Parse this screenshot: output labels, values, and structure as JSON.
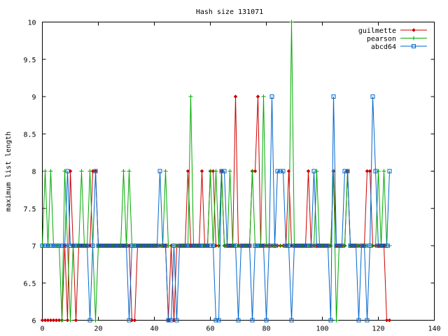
{
  "chart_data": {
    "type": "line",
    "title": "Hash size 131071",
    "xlabel": "",
    "ylabel": "maximum list length",
    "xlim": [
      0,
      140
    ],
    "ylim": [
      6,
      10
    ],
    "xticks": [
      0,
      20,
      40,
      60,
      80,
      100,
      120,
      140
    ],
    "yticks": [
      6,
      6.5,
      7,
      7.5,
      8,
      8.5,
      9,
      9.5,
      10
    ],
    "ytick_labels": [
      "6",
      "6.5",
      "7",
      "7.5",
      "8",
      "8.5",
      "9",
      "9.5",
      "10"
    ],
    "grid": false,
    "legend_position": "top-right",
    "series": [
      {
        "name": "guilmette",
        "color": "#cc0000",
        "marker": "diamond",
        "values": [
          6,
          6,
          6,
          6,
          6,
          6,
          6,
          6,
          7,
          6,
          8,
          7,
          6,
          7,
          7,
          7,
          7,
          7,
          8,
          8,
          7,
          7,
          7,
          7,
          7,
          7,
          7,
          7,
          7,
          7,
          7,
          7,
          6,
          6,
          7,
          7,
          7,
          7,
          7,
          7,
          7,
          7,
          7,
          7,
          7,
          6,
          7,
          6,
          7,
          7,
          7,
          7,
          8,
          7,
          7,
          7,
          7,
          8,
          7,
          7,
          8,
          8,
          7,
          7,
          8,
          7,
          7,
          7,
          7,
          9,
          7,
          7,
          7,
          7,
          7,
          8,
          8,
          9,
          7,
          7,
          7,
          7,
          7,
          7,
          7,
          7,
          7,
          7,
          8,
          7,
          7,
          7,
          7,
          7,
          7,
          8,
          7,
          7,
          7,
          7,
          7,
          7,
          7,
          7,
          8,
          7,
          7,
          7,
          7,
          8,
          7,
          7,
          7,
          7,
          7,
          7,
          8,
          8,
          7,
          7,
          7,
          7,
          7,
          6,
          6
        ]
      },
      {
        "name": "pearson",
        "color": "#00aa00",
        "marker": "plus",
        "values": [
          7,
          8,
          7,
          8,
          7,
          7,
          7,
          6,
          8,
          7,
          6,
          7,
          7,
          7,
          8,
          7,
          7,
          8,
          7,
          6,
          7,
          7,
          7,
          7,
          7,
          7,
          7,
          7,
          7,
          8,
          7,
          8,
          7,
          7,
          7,
          7,
          7,
          7,
          7,
          7,
          7,
          7,
          7,
          7,
          8,
          7,
          7,
          7,
          7,
          7,
          7,
          7,
          7,
          9,
          7,
          7,
          7,
          7,
          7,
          7,
          8,
          7,
          8,
          7,
          8,
          7,
          7,
          8,
          7,
          7,
          7,
          7,
          7,
          7,
          7,
          8,
          7,
          7,
          7,
          9,
          7,
          7,
          7,
          7,
          7,
          7,
          7,
          7,
          7,
          10,
          7,
          7,
          7,
          7,
          7,
          7,
          7,
          7,
          8,
          7,
          7,
          7,
          7,
          7,
          8,
          6,
          7,
          7,
          7,
          8,
          7,
          7,
          7,
          7,
          7,
          7,
          7,
          7,
          7,
          7,
          8,
          7,
          8,
          7,
          7
        ]
      },
      {
        "name": "abcd64",
        "color": "#0066cc",
        "marker": "square",
        "values": [
          7,
          7,
          7,
          7,
          7,
          7,
          7,
          7,
          7,
          8,
          7,
          7,
          7,
          7,
          7,
          7,
          7,
          6,
          7,
          8,
          7,
          7,
          7,
          7,
          7,
          7,
          7,
          7,
          7,
          7,
          7,
          6,
          7,
          7,
          7,
          7,
          7,
          7,
          7,
          7,
          7,
          7,
          8,
          7,
          7,
          6,
          6,
          7,
          6,
          7,
          7,
          7,
          7,
          7,
          7,
          7,
          7,
          7,
          7,
          7,
          7,
          7,
          6,
          6,
          8,
          8,
          7,
          7,
          7,
          7,
          6,
          7,
          7,
          7,
          7,
          6,
          7,
          7,
          7,
          7,
          6,
          7,
          9,
          7,
          8,
          8,
          8,
          7,
          7,
          6,
          7,
          7,
          7,
          7,
          7,
          7,
          7,
          8,
          7,
          7,
          7,
          7,
          7,
          6,
          9,
          7,
          7,
          7,
          8,
          8,
          7,
          7,
          7,
          6,
          7,
          7,
          6,
          7,
          9,
          8,
          7,
          7,
          7,
          7,
          8
        ]
      }
    ]
  }
}
